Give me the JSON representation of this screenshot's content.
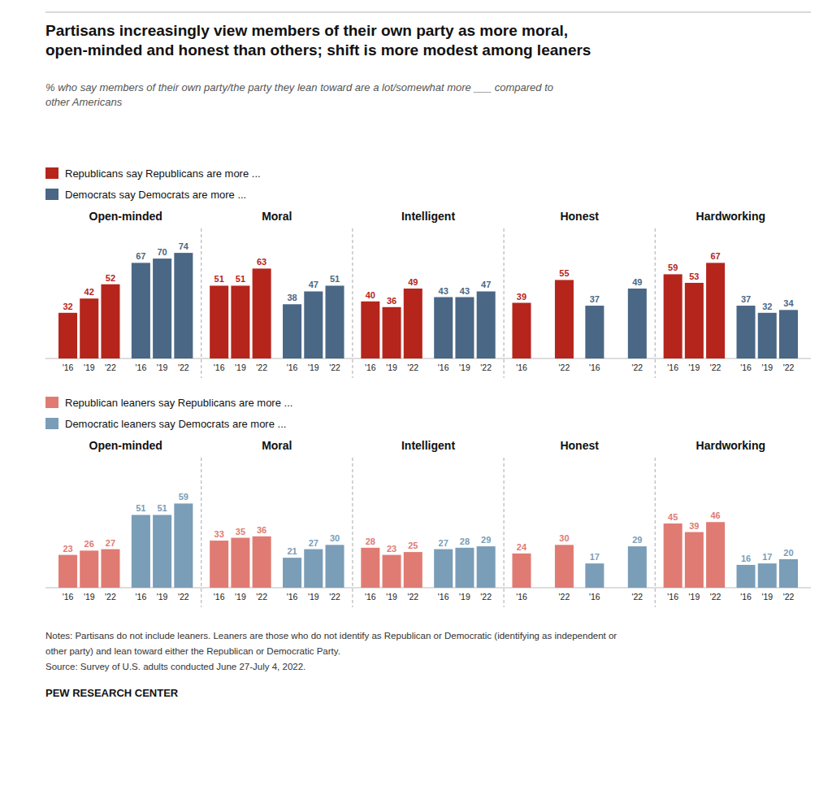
{
  "chart_data": [
    {
      "type": "bar",
      "title": "Partisans increasingly view members of their own party as more moral,\nopen-minded and honest than others; shift is more modest among leaners",
      "subtitle": "% who say members of their own party/the party they lean toward are a lot/somewhat more ___ compared to\nother Americans",
      "categories": [
        "Open-minded",
        "Moral",
        "Intelligent",
        "Honest",
        "Hardworking"
      ],
      "x": [
        "'16",
        "'19",
        "'22"
      ],
      "series": [
        {
          "name": "Republicans say Republicans are more ...",
          "color": "#b5251c",
          "values": [
            [
              32,
              42,
              52
            ],
            [
              51,
              51,
              63
            ],
            [
              40,
              36,
              49
            ],
            [
              39,
              null,
              55
            ],
            [
              59,
              53,
              67
            ]
          ]
        },
        {
          "name": "Democrats say Democrats are more ...",
          "color": "#4a6785",
          "values": [
            [
              67,
              70,
              74
            ],
            [
              38,
              47,
              51
            ],
            [
              43,
              43,
              47
            ],
            [
              37,
              null,
              49
            ],
            [
              37,
              32,
              34
            ]
          ]
        }
      ],
      "ylim": [
        0,
        90
      ],
      "yticks": [],
      "grid": false,
      "legend": "top",
      "data_labels": true,
      "tick_labels": "x"
    },
    {
      "type": "bar",
      "categories": [
        "Open-minded",
        "Moral",
        "Intelligent",
        "Honest",
        "Hardworking"
      ],
      "x": [
        "'16",
        "'19",
        "'22"
      ],
      "series": [
        {
          "name": "Republican leaners say Republicans are more ...",
          "color": "#e07b73",
          "values": [
            [
              23,
              26,
              27
            ],
            [
              33,
              35,
              36
            ],
            [
              28,
              23,
              25
            ],
            [
              24,
              null,
              30
            ],
            [
              45,
              39,
              46
            ]
          ]
        },
        {
          "name": "Democratic leaners say Democrats are more ...",
          "color": "#7a9db8",
          "values": [
            [
              51,
              51,
              59
            ],
            [
              21,
              27,
              30
            ],
            [
              27,
              28,
              29
            ],
            [
              17,
              null,
              29
            ],
            [
              16,
              17,
              20
            ]
          ]
        }
      ],
      "ylim": [
        0,
        90
      ],
      "yticks": [],
      "grid": false,
      "legend": "top",
      "data_labels": true,
      "tick_labels": "x",
      "annotations": [
        "Notes: Partisans do not include leaners. Leaners are those who do not identify as Republican or Democratic (identifying as independent or",
        "other party) and lean toward either the Republican or Democratic Party.",
        "Source: Survey of U.S. adults conducted June 27-July 4, 2022.",
        "PEW RESEARCH CENTER"
      ]
    }
  ]
}
